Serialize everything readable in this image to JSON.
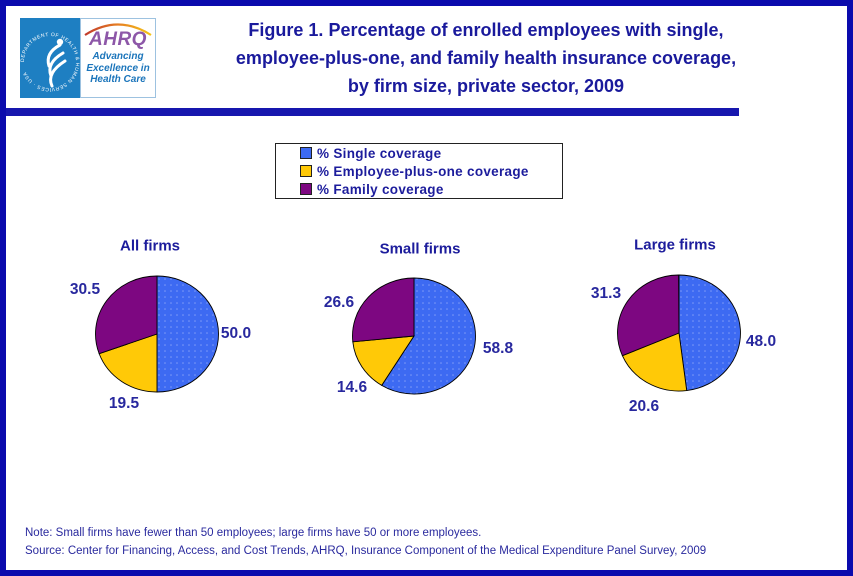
{
  "logo": {
    "seal_text": "DEPARTMENT OF HEALTH & HUMAN SERVICES · USA",
    "brand": "AHRQ",
    "tagline": "Advancing\nExcellence in\nHealth Care"
  },
  "title": "Figure 1. Percentage of enrolled employees with single,\nemployee-plus-one, and family health insurance coverage,\nby firm size, private sector, 2009",
  "legend": [
    {
      "label": "% Single coverage",
      "color": "#3d6af2"
    },
    {
      "label": "% Employee-plus-one coverage",
      "color": "#ffc907"
    },
    {
      "label": "% Family coverage",
      "color": "#7d0781"
    }
  ],
  "chart_data": {
    "type": "pie",
    "series_labels": [
      "% Single coverage",
      "% Employee-plus-one coverage",
      "% Family coverage"
    ],
    "colors": [
      "#3d6af2",
      "#ffc907",
      "#7d0781"
    ],
    "start_angle": "top",
    "direction": "clockwise",
    "value_format": "one_decimal",
    "pies": [
      {
        "title": "All firms",
        "values": [
          50.0,
          19.5,
          30.5
        ]
      },
      {
        "title": "Small firms",
        "values": [
          58.8,
          14.6,
          26.6
        ]
      },
      {
        "title": "Large firms",
        "values": [
          48.0,
          20.6,
          31.3
        ]
      }
    ]
  },
  "notes": {
    "note": "Note: Small firms have fewer than 50 employees; large firms have 50 or more employees.",
    "source": "Source: Center for Financing, Access, and Cost Trends, AHRQ, Insurance Component of the Medical Expenditure Panel Survey, 2009"
  }
}
